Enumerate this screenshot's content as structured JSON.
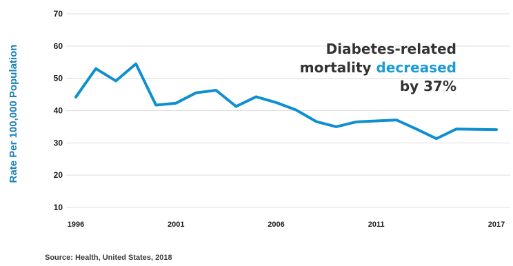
{
  "chart_data": {
    "type": "line",
    "title": "",
    "ylabel": "Rate Per 100,000 Population",
    "xlabel": "",
    "ylim": [
      10,
      70
    ],
    "yticks": [
      10,
      20,
      30,
      40,
      50,
      60,
      70
    ],
    "xlim": [
      1996,
      2017
    ],
    "xticks": [
      1996,
      2001,
      2006,
      2011,
      2017
    ],
    "grid": true,
    "series": [
      {
        "name": "",
        "color": "#0d8fd0",
        "x": [
          1996,
          1997,
          1998,
          1999,
          2000,
          2001,
          2002,
          2003,
          2004,
          2005,
          2006,
          2007,
          2008,
          2009,
          2010,
          2011,
          2012,
          2013,
          2014,
          2015,
          2016,
          2017
        ],
        "y": [
          44.2,
          53.0,
          49.2,
          54.5,
          41.7,
          42.3,
          45.5,
          46.3,
          41.3,
          44.3,
          42.5,
          40.2,
          36.6,
          35.0,
          36.5,
          36.8,
          37.1,
          34.3,
          31.3,
          34.3,
          34.2,
          34.1
        ]
      }
    ],
    "annotation": {
      "line1": "Diabetes-related",
      "line2_prefix": "mortality ",
      "line2_highlight": "decreased",
      "line3": "by 37%",
      "highlight_color": "#1a9bd7"
    },
    "source": "Source: Health, United States, 2018"
  }
}
